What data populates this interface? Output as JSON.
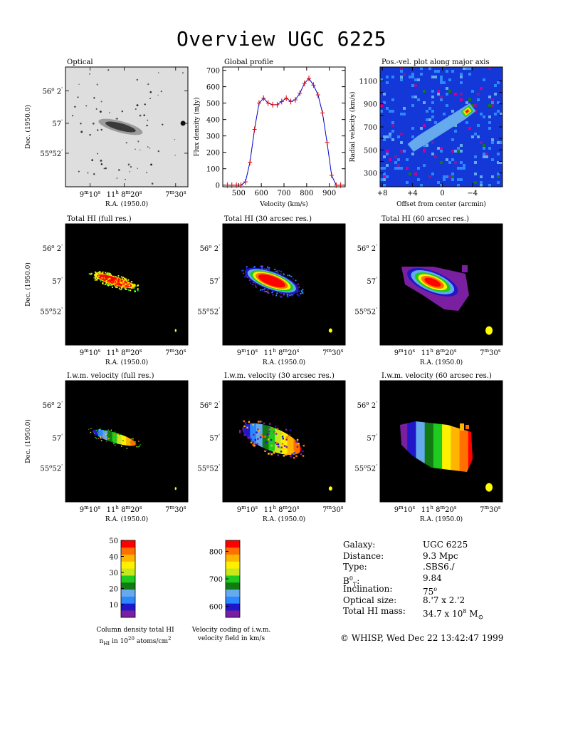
{
  "title": "Overview UGC 6225",
  "panels": {
    "optical": {
      "title": "Optical"
    },
    "hi_full": {
      "title": "Total HI (full res.)"
    },
    "hi_30": {
      "title": "Total HI (30 arcsec res.)"
    },
    "hi_60": {
      "title": "Total HI (60 arcsec res.)"
    },
    "vel_full": {
      "title": "I.w.m. velocity (full res.)"
    },
    "vel_30": {
      "title": "I.w.m. velocity (30 arcsec res.)"
    },
    "vel_60": {
      "title": "I.w.m. velocity (60 arcsec res.)"
    }
  },
  "sky_axes": {
    "xlabel": "R.A. (1950.0)",
    "ylabel": "Dec. (1950.0)",
    "xticks": [
      {
        "h": "9",
        "hs": "m",
        "m": "10",
        "ms": "s"
      },
      {
        "h": "11",
        "hs": "h",
        "m": " 8",
        "ms": "m",
        "t": "20",
        "ts": "s"
      },
      {
        "h": "7",
        "hs": "m",
        "m": "30",
        "ms": "s"
      }
    ],
    "yticks": [
      {
        "d": "56",
        "ds": "o",
        "m": " 2",
        "ms": "'"
      },
      {
        "d": "57",
        "ds": "'"
      },
      {
        "d": "55",
        "ds": "o",
        "m": "52",
        "ms": "'"
      }
    ]
  },
  "chart_data": [
    {
      "type": "line",
      "title": "Global profile",
      "xlabel": "Velocity (km/s)",
      "ylabel": "Flux density (mJy)",
      "xlim": [
        430,
        970
      ],
      "ylim": [
        -10,
        720
      ],
      "xticks": [
        500,
        600,
        700,
        800,
        900
      ],
      "yticks": [
        0,
        100,
        200,
        300,
        400,
        500,
        600,
        700
      ],
      "series": [
        {
          "x": [
            450,
            470,
            490,
            510,
            530,
            550,
            570,
            590,
            610,
            630,
            650,
            670,
            690,
            710,
            730,
            750,
            770,
            790,
            810,
            830,
            850,
            870,
            890,
            910,
            930,
            950
          ],
          "y": [
            0,
            0,
            0,
            0,
            20,
            140,
            340,
            500,
            530,
            500,
            490,
            490,
            510,
            530,
            510,
            520,
            560,
            620,
            650,
            610,
            550,
            440,
            260,
            60,
            0,
            0
          ]
        }
      ]
    },
    {
      "type": "heatmap",
      "title": "Pos.-vel. plot along major axis",
      "xlabel": "Offset from center (arcmin)",
      "ylabel": "Radial velocity (km/s)",
      "xlim": [
        8.3,
        -8.0
      ],
      "ylim": [
        180,
        1220
      ],
      "xticks": [
        "+8",
        "+4",
        "0",
        "−4"
      ],
      "xtick_values": [
        8,
        4,
        0,
        -4
      ],
      "yticks": [
        300,
        400,
        500,
        600,
        700,
        800,
        900,
        1000,
        1100
      ],
      "yticklabels": [
        300,
        "",
        500,
        "",
        700,
        "",
        900,
        "",
        1100
      ]
    },
    {
      "type": "heatmap",
      "title": "Column density total HI",
      "colorbar_label": "Column density total HI",
      "unit_label": {
        "n": "n",
        "n_sub": "HI",
        "mid": " in 10",
        "exp": "20",
        "unit": " atoms/cm",
        "unit_exp": "2"
      },
      "range": [
        2,
        50
      ],
      "ticks": [
        10,
        20,
        30,
        40,
        50
      ]
    },
    {
      "type": "heatmap",
      "title": "Velocity coding of i.w.m. velocity field in km/s",
      "range": [
        560,
        840
      ],
      "ticks": [
        600,
        700,
        800
      ]
    }
  ],
  "colors": {
    "scale": [
      "#7a1fa0",
      "#1f17c8",
      "#2b88ff",
      "#66aaee",
      "#127a12",
      "#1ecb1e",
      "#c8e81e",
      "#fff000",
      "#ffb400",
      "#ff7000",
      "#ff0000"
    ],
    "optical_bg": "#dedede",
    "profile_line": "#0000cc",
    "profile_marker": "#dd0000",
    "pv_bg": "#1437d8",
    "beam": "#ffff00"
  },
  "galaxy": {
    "rows": [
      {
        "label": "Galaxy:",
        "value": "UGC 6225"
      },
      {
        "label": "Distance:",
        "value": "9.3 Mpc"
      },
      {
        "label": "Type:",
        "value": ".SBS6./"
      },
      {
        "label": "B",
        "label_sup": "0",
        "label_sub": "T",
        "label_end": ":",
        "value": "9.84"
      },
      {
        "label": "Inclination:",
        "value": "75",
        "value_sup": "o"
      },
      {
        "label": "Optical size:",
        "value": "8.'7 x 2.'2"
      },
      {
        "label": "Total HI mass:",
        "value": "34.7 x 10",
        "value_sup": "8",
        "value_end": " M",
        "value_sub": "⊙"
      }
    ],
    "credit": "© WHISP, Wed Dec 22 13:42:47 1999"
  }
}
